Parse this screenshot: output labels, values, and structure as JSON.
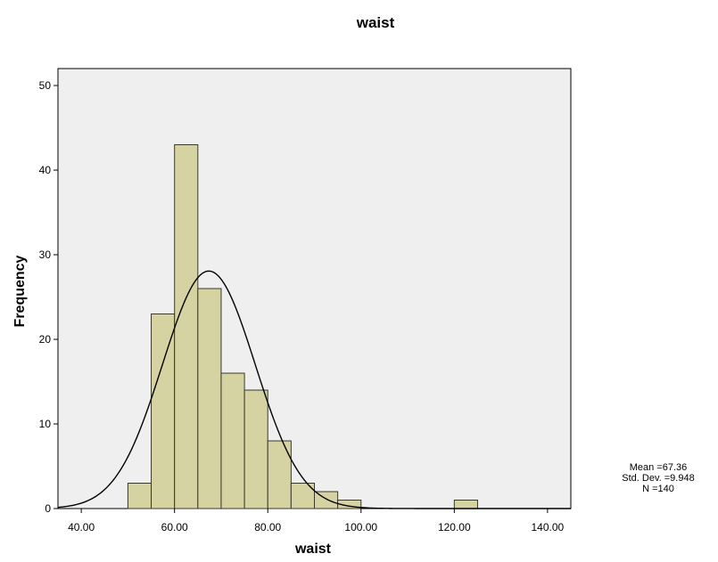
{
  "chart_data": {
    "type": "bar",
    "title": "waist",
    "xlabel": "waist",
    "ylabel": "Frequency",
    "xlim": [
      35,
      145
    ],
    "ylim": [
      0,
      52
    ],
    "x_ticks": [
      "40.00",
      "60.00",
      "80.00",
      "100.00",
      "120.00",
      "140.00"
    ],
    "y_ticks": [
      "0",
      "10",
      "20",
      "30",
      "40",
      "50"
    ],
    "bin_width": 5,
    "bins": [
      {
        "start": 50,
        "end": 55,
        "count": 3
      },
      {
        "start": 55,
        "end": 60,
        "count": 23
      },
      {
        "start": 60,
        "end": 65,
        "count": 43
      },
      {
        "start": 65,
        "end": 70,
        "count": 26
      },
      {
        "start": 70,
        "end": 75,
        "count": 16
      },
      {
        "start": 75,
        "end": 80,
        "count": 14
      },
      {
        "start": 80,
        "end": 85,
        "count": 8
      },
      {
        "start": 85,
        "end": 90,
        "count": 3
      },
      {
        "start": 90,
        "end": 95,
        "count": 2
      },
      {
        "start": 95,
        "end": 100,
        "count": 1
      },
      {
        "start": 120,
        "end": 125,
        "count": 1
      }
    ],
    "normal_curve": {
      "mean": 67.36,
      "sd": 9.948,
      "n": 140
    },
    "stats": {
      "mean_label": "Mean =67.36",
      "sd_label": "Std. Dev. =9.948",
      "n_label": "N =140"
    },
    "grid": false,
    "colors": {
      "bar_fill": "#d6d3a3",
      "bar_stroke": "#3a3a2a",
      "plot_background": "#efefef",
      "curve": "#000000"
    }
  }
}
